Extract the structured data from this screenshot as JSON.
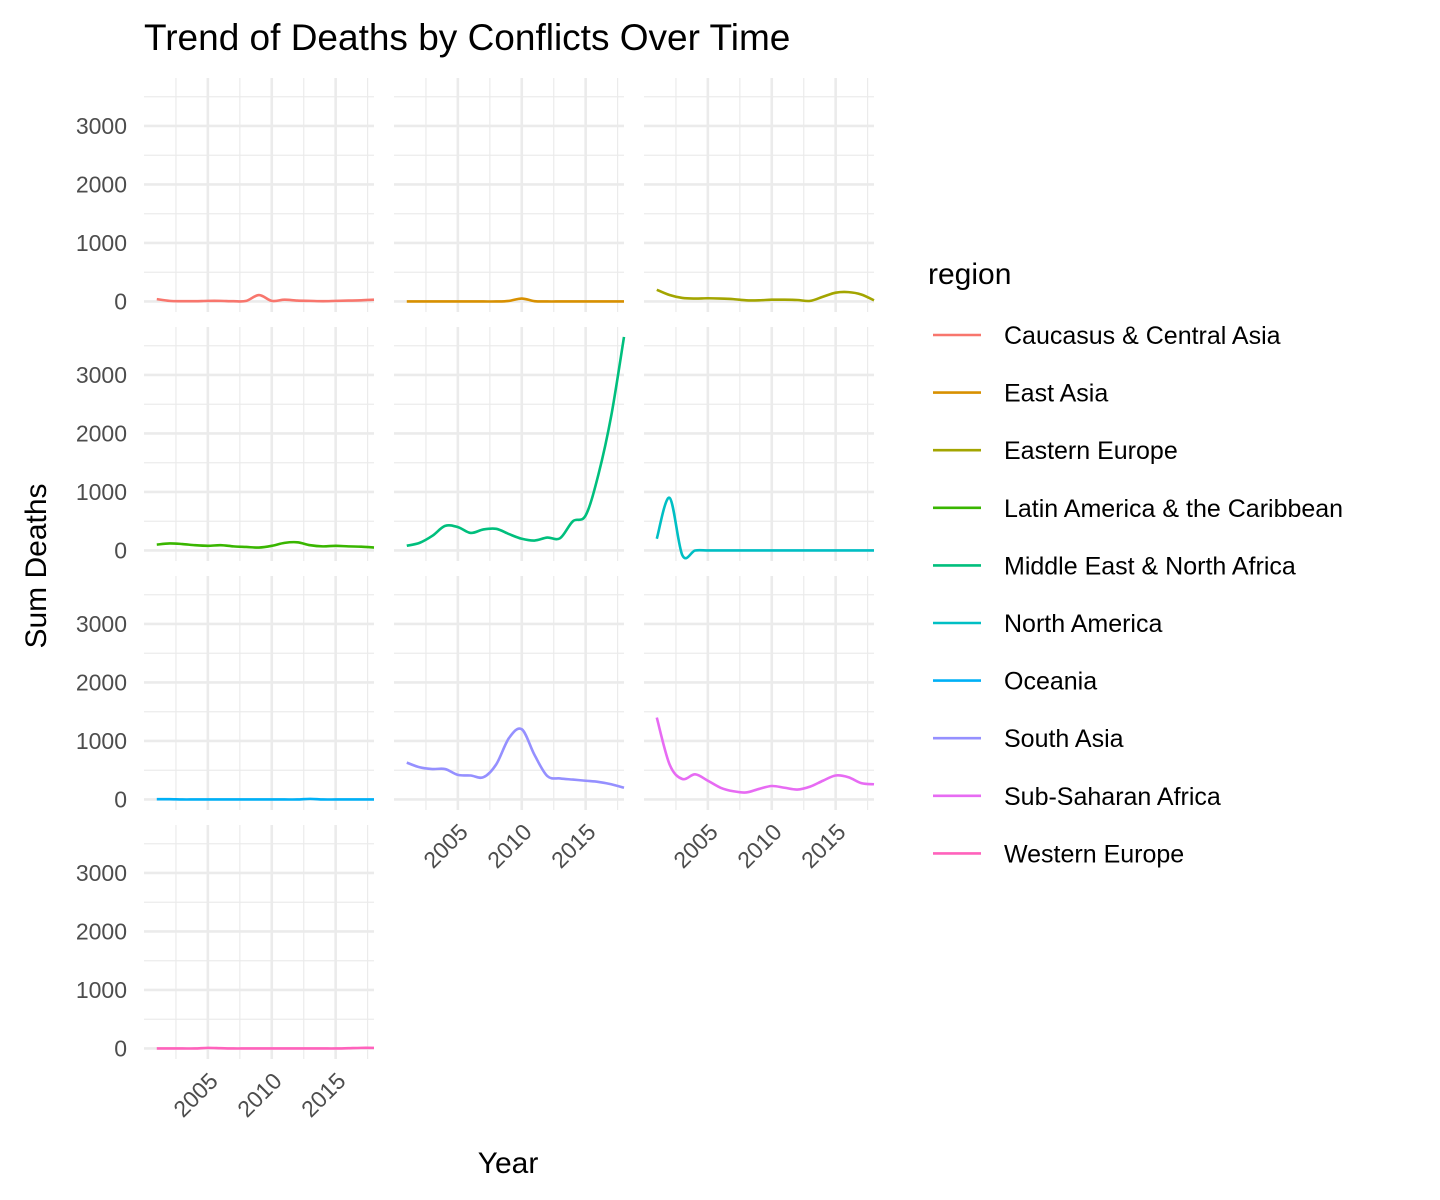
{
  "chart_data": {
    "type": "line",
    "title": "Trend of Deaths by Conflicts Over Time",
    "xlabel": "Year",
    "ylabel": "Sum Deaths",
    "facet_by": "region",
    "x_ticks": [
      2005,
      2010,
      2015
    ],
    "y_ticks": [
      0,
      1000,
      2000,
      3000
    ],
    "xlim": [
      2000,
      2018
    ],
    "ylim": [
      -180,
      3820
    ],
    "grid": true,
    "legend": {
      "title": "region",
      "position": "right"
    },
    "x": [
      2001,
      2002,
      2003,
      2004,
      2005,
      2006,
      2007,
      2008,
      2009,
      2010,
      2011,
      2012,
      2013,
      2014,
      2015,
      2016,
      2017,
      2018
    ],
    "series": [
      {
        "name": "Caucasus & Central Asia",
        "color": "#F8766D",
        "values": [
          40,
          10,
          5,
          5,
          10,
          10,
          5,
          10,
          110,
          10,
          30,
          15,
          10,
          5,
          10,
          15,
          20,
          30
        ]
      },
      {
        "name": "East Asia",
        "color": "#D89000",
        "values": [
          0,
          0,
          0,
          0,
          0,
          0,
          0,
          0,
          10,
          50,
          5,
          0,
          0,
          0,
          0,
          0,
          0,
          0
        ]
      },
      {
        "name": "Eastern Europe",
        "color": "#A3A500",
        "values": [
          200,
          110,
          60,
          50,
          55,
          50,
          40,
          20,
          20,
          30,
          30,
          25,
          10,
          80,
          150,
          160,
          120,
          20
        ]
      },
      {
        "name": "Latin America & the Caribbean",
        "color": "#39B600",
        "values": [
          100,
          120,
          110,
          90,
          80,
          90,
          70,
          60,
          50,
          80,
          130,
          140,
          90,
          70,
          80,
          70,
          65,
          50
        ]
      },
      {
        "name": "Middle East & North Africa",
        "color": "#00BF7D",
        "values": [
          80,
          130,
          250,
          420,
          400,
          300,
          360,
          370,
          280,
          200,
          170,
          220,
          210,
          500,
          600,
          1300,
          2300,
          3650
        ]
      },
      {
        "name": "North America",
        "color": "#00BFC4",
        "values": [
          200,
          900,
          -80,
          0,
          0,
          0,
          0,
          0,
          0,
          0,
          0,
          0,
          0,
          0,
          0,
          0,
          0,
          0
        ]
      },
      {
        "name": "Oceania",
        "color": "#00B0F6",
        "values": [
          5,
          5,
          0,
          0,
          0,
          0,
          0,
          0,
          0,
          0,
          0,
          0,
          10,
          0,
          0,
          0,
          0,
          0
        ]
      },
      {
        "name": "South Asia",
        "color": "#9590FF",
        "values": [
          630,
          550,
          520,
          520,
          420,
          410,
          380,
          600,
          1050,
          1200,
          760,
          400,
          360,
          340,
          320,
          300,
          260,
          200
        ]
      },
      {
        "name": "Sub-Saharan Africa",
        "color": "#E76BF3",
        "values": [
          1400,
          600,
          350,
          430,
          320,
          200,
          140,
          120,
          180,
          230,
          200,
          170,
          220,
          320,
          410,
          380,
          280,
          260
        ]
      },
      {
        "name": "Western Europe",
        "color": "#FF62BC",
        "values": [
          0,
          0,
          0,
          0,
          10,
          5,
          0,
          0,
          0,
          0,
          0,
          0,
          0,
          0,
          0,
          5,
          10,
          10
        ]
      }
    ]
  }
}
